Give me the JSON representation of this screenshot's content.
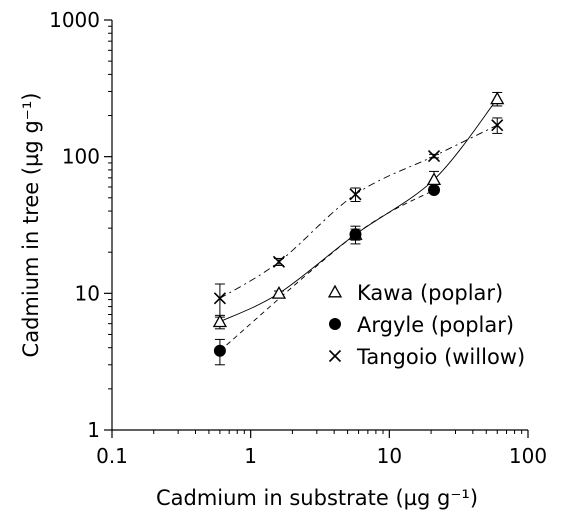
{
  "chart_data": {
    "type": "scatter",
    "x_scale": "log",
    "y_scale": "log",
    "xlabel": "Cadmium in substrate (µg g⁻¹)",
    "ylabel": "Cadmium in tree (µg g⁻¹)",
    "xlim": [
      0.1,
      100
    ],
    "ylim": [
      1,
      1000
    ],
    "x_ticks": [
      "0.1",
      "1",
      "10",
      "100"
    ],
    "y_ticks": [
      "1",
      "10",
      "100",
      "1000"
    ],
    "grid": false,
    "legend_position": "center-right",
    "series": [
      {
        "name": "Kawa (poplar)",
        "marker": "open-triangle",
        "line_style": "solid",
        "points": [
          {
            "x": 0.6,
            "y": 6.2,
            "err": 0.7
          },
          {
            "x": 1.6,
            "y": 10,
            "err": 0.4
          },
          {
            "x": 5.7,
            "y": 27,
            "err": 2.5
          },
          {
            "x": 21,
            "y": 68,
            "err": 10
          },
          {
            "x": 60,
            "y": 265,
            "err": 30
          }
        ]
      },
      {
        "name": "Argyle (poplar)",
        "marker": "filled-circle",
        "line_style": "dashed",
        "points": [
          {
            "x": 0.6,
            "y": 3.8,
            "err": 0.8
          },
          {
            "x": 5.7,
            "y": 27,
            "err": 4
          },
          {
            "x": 21,
            "y": 57,
            "err": 2
          }
        ]
      },
      {
        "name": "Tangoio (willow)",
        "marker": "x",
        "line_style": "dash-dot",
        "points": [
          {
            "x": 0.6,
            "y": 9.2,
            "err": 2.5
          },
          {
            "x": 1.6,
            "y": 17,
            "err": 1
          },
          {
            "x": 5.7,
            "y": 53,
            "err": 6
          },
          {
            "x": 21,
            "y": 101,
            "err": 3
          },
          {
            "x": 60,
            "y": 170,
            "err": 22
          }
        ]
      }
    ]
  }
}
